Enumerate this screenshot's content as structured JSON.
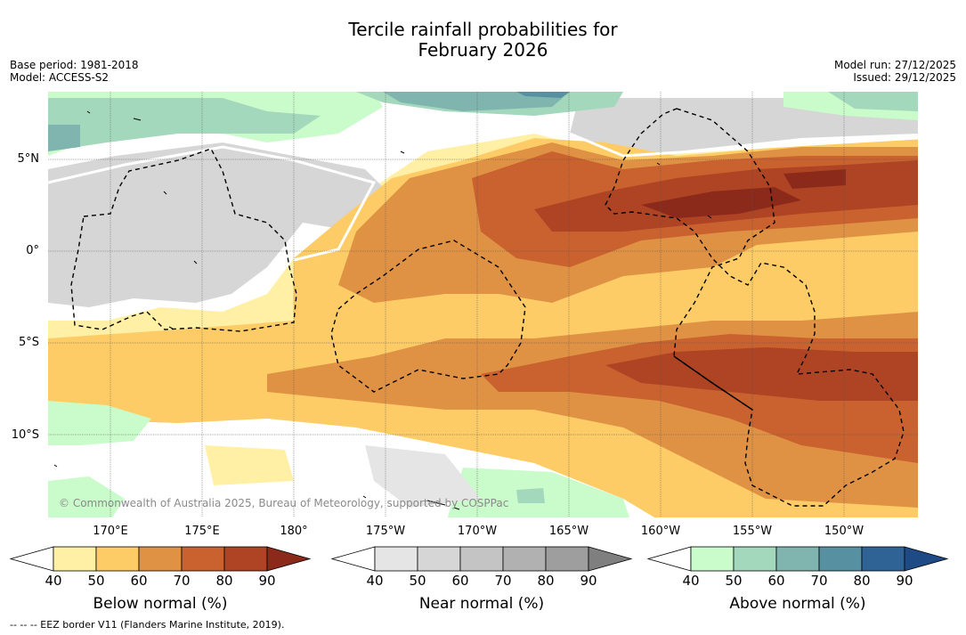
{
  "title_line1": "Tercile rainfall probabilities for",
  "title_line2": "February 2026",
  "base_period": "Base period: 1981-2018",
  "model": "Model: ACCESS-S2",
  "model_run": "Model run: 27/12/2025",
  "issued": "Issued: 29/12/2025",
  "copyright": "© Commonwealth of Australia 2025, Bureau of Meteorology, supported by COSPPac",
  "footnote": "--  --  -- EEZ border V11 (Flanders Marine Institute, 2019).",
  "lat_labels": [
    "5°N",
    "0°",
    "5°S",
    "10°S"
  ],
  "lon_labels": [
    "170°E",
    "175°E",
    "180°",
    "175°W",
    "170°W",
    "165°W",
    "160°W",
    "155°W",
    "150°W"
  ],
  "colorbars": {
    "below": {
      "label": "Below normal (%)",
      "ticks": [
        "40",
        "50",
        "60",
        "70",
        "80",
        "90"
      ],
      "colors": [
        "#ffffff",
        "#fff0a6",
        "#fdcc66",
        "#e09244",
        "#c9622e",
        "#ae4424",
        "#8b2a1a"
      ]
    },
    "near": {
      "label": "Near normal (%)",
      "ticks": [
        "40",
        "50",
        "60",
        "70",
        "80",
        "90"
      ],
      "colors": [
        "#ffffff",
        "#e5e5e5",
        "#d6d6d6",
        "#c4c4c4",
        "#b1b1b1",
        "#9e9e9e",
        "#7f7f7f"
      ]
    },
    "above": {
      "label": "Above normal (%)",
      "ticks": [
        "40",
        "50",
        "60",
        "70",
        "80",
        "90"
      ],
      "colors": [
        "#ffffff",
        "#c9fbcb",
        "#a3d8bc",
        "#7fb5ae",
        "#5790a0",
        "#2f6395",
        "#1e4b86"
      ]
    }
  }
}
